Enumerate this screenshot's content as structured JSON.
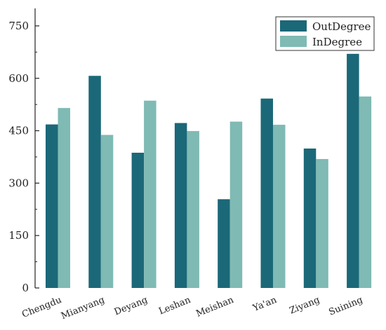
{
  "chart_data": {
    "type": "bar",
    "title": "",
    "xlabel": "",
    "ylabel": "",
    "categories": [
      "Chengdu",
      "Mianyang",
      "Deyang",
      "Leshan",
      "Meishan",
      "Ya'an",
      "Ziyang",
      "Suining"
    ],
    "series": [
      {
        "name": "OutDegree",
        "color": "#1b6878",
        "values": [
          468,
          607,
          387,
          472,
          254,
          542,
          399,
          670
        ]
      },
      {
        "name": "InDegree",
        "color": "#7fbab4",
        "values": [
          515,
          438,
          536,
          449,
          476,
          467,
          369,
          548
        ]
      }
    ],
    "ylim": [
      0,
      800
    ],
    "yticks": [
      0,
      150,
      300,
      450,
      600,
      750
    ],
    "grid": false,
    "legend_position": "top-right"
  }
}
